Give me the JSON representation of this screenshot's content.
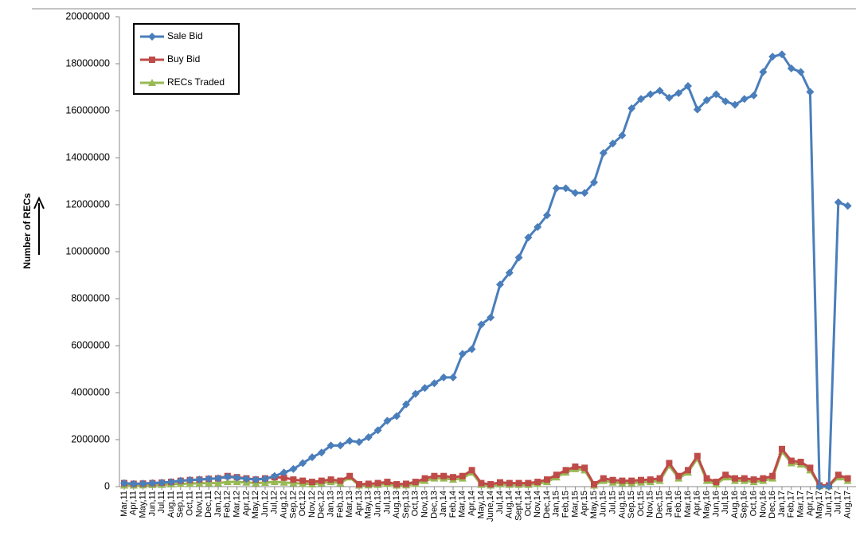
{
  "chart_data": {
    "type": "line",
    "ylabel": "Number of RECs",
    "categories": [
      "Mar,11",
      "Apr,11",
      "May,11",
      "Jun,11",
      "Jul,11",
      "Aug,11",
      "Sep,11",
      "Oct,11",
      "Nov,11",
      "Dec,11",
      "Jan,12",
      "Feb,12",
      "Mar,12",
      "Apr,12",
      "May,12",
      "Jun,12",
      "Jul,12",
      "Aug,12",
      "Sep,12",
      "Oct,12",
      "Nov,12",
      "Dec,12",
      "Jan,13",
      "Feb,13",
      "Mar,13",
      "Apr,13",
      "May,13",
      "Jun,13",
      "Jul,13",
      "Aug,13",
      "Sep,13",
      "Oct,13",
      "Nov,13",
      "Dec,13",
      "Jan,14",
      "Feb,14",
      "Mar,14",
      "Apr,14",
      "May,14",
      "June,14",
      "Jul,14",
      "Aug,14",
      "Sept,14",
      "Oct,14",
      "Nov,14",
      "Dec,14",
      "Jan,15",
      "Feb,15",
      "Mar,15",
      "Apr,15",
      "May,15",
      "Jun,15",
      "Jul,15",
      "Aug,15",
      "Sep,15",
      "Oct,15",
      "Nov,15",
      "Dec,15",
      "Jan,16",
      "Feb,16",
      "Mar,16",
      "Apr,16",
      "May,16",
      "Jun,16",
      "Jul,16",
      "Aug,16",
      "Sep,16",
      "Oct,16",
      "Nov,16",
      "Dec,16",
      "Jan,17",
      "Feb,17",
      "Mar,17",
      "Apr,17",
      "May,17",
      "Jun,17",
      "Jul,17",
      "Aug,17"
    ],
    "series": [
      {
        "name": "Sale Bid",
        "color": "#4a7ebb",
        "marker": "diamond",
        "values": [
          150000,
          120000,
          130000,
          150000,
          170000,
          200000,
          250000,
          280000,
          300000,
          330000,
          350000,
          420000,
          380000,
          330000,
          300000,
          330000,
          450000,
          600000,
          750000,
          1000000,
          1250000,
          1450000,
          1750000,
          1750000,
          1950000,
          1900000,
          2100000,
          2400000,
          2800000,
          3000000,
          3500000,
          3950000,
          4200000,
          4400000,
          4650000,
          4650000,
          5650000,
          5850000,
          6900000,
          7200000,
          8600000,
          9100000,
          9750000,
          10600000,
          11050000,
          11550000,
          12700000,
          12700000,
          12500000,
          12500000,
          12950000,
          14200000,
          14600000,
          14950000,
          16100000,
          16500000,
          16700000,
          16850000,
          16550000,
          16750000,
          17050000,
          16050000,
          16450000,
          16700000,
          16400000,
          16250000,
          16500000,
          16650000,
          17650000,
          18300000,
          18400000,
          17800000,
          17650000,
          16800000,
          0,
          0,
          12100000,
          11950000
        ]
      },
      {
        "name": "Buy Bid",
        "color": "#be4b48",
        "marker": "square",
        "values": [
          150000,
          120000,
          130000,
          150000,
          170000,
          200000,
          250000,
          280000,
          300000,
          330000,
          350000,
          450000,
          400000,
          350000,
          300000,
          350000,
          400000,
          380000,
          300000,
          250000,
          200000,
          250000,
          300000,
          250000,
          450000,
          100000,
          120000,
          150000,
          200000,
          100000,
          120000,
          200000,
          350000,
          450000,
          450000,
          400000,
          450000,
          700000,
          150000,
          100000,
          180000,
          150000,
          150000,
          150000,
          200000,
          300000,
          500000,
          700000,
          850000,
          800000,
          100000,
          350000,
          280000,
          250000,
          250000,
          280000,
          300000,
          350000,
          1000000,
          450000,
          700000,
          1300000,
          350000,
          200000,
          500000,
          350000,
          350000,
          300000,
          350000,
          450000,
          1600000,
          1100000,
          1050000,
          800000,
          50000,
          50000,
          500000,
          350000
        ]
      },
      {
        "name": "RECs Traded",
        "color": "#98b954",
        "marker": "triangle",
        "values": [
          50000,
          50000,
          60000,
          70000,
          80000,
          100000,
          120000,
          130000,
          140000,
          150000,
          150000,
          200000,
          200000,
          180000,
          150000,
          170000,
          200000,
          180000,
          150000,
          130000,
          100000,
          150000,
          200000,
          150000,
          400000,
          50000,
          60000,
          80000,
          120000,
          50000,
          60000,
          120000,
          250000,
          350000,
          350000,
          300000,
          350000,
          600000,
          80000,
          50000,
          100000,
          80000,
          80000,
          80000,
          120000,
          200000,
          400000,
          600000,
          750000,
          700000,
          50000,
          250000,
          180000,
          150000,
          150000,
          180000,
          200000,
          250000,
          900000,
          350000,
          600000,
          1200000,
          250000,
          100000,
          400000,
          250000,
          250000,
          200000,
          250000,
          350000,
          1500000,
          1000000,
          950000,
          700000,
          20000,
          20000,
          400000,
          250000
        ]
      }
    ],
    "ylim": [
      0,
      20000000
    ],
    "yticks": [
      0,
      2000000,
      4000000,
      6000000,
      8000000,
      10000000,
      12000000,
      14000000,
      16000000,
      18000000,
      20000000
    ],
    "legend": "upper left"
  }
}
